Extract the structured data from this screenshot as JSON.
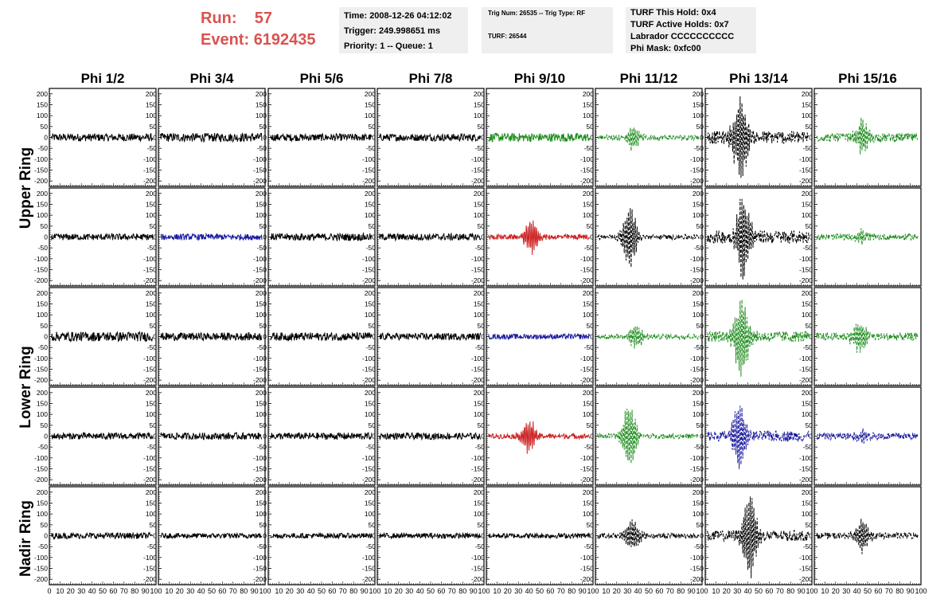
{
  "header": {
    "run_label": "Run:",
    "run_value": "57",
    "event_label": "Event:",
    "event_value": "6192435"
  },
  "info_boxes": {
    "box1": [
      "Time: 2008-12-26 04:12:02",
      "Trigger: 249.998651 ms",
      "Priority: 1 -- Queue: 1"
    ],
    "box2": [
      "Trig Num: 26535 -- Trig Type: RF",
      "TURF: 26544"
    ],
    "box3": [
      "TURF This Hold: 0x4",
      "TURF Active Holds: 0x7",
      "Labrador CCCCCCCCCC",
      "Phi Mask: 0xfc00"
    ]
  },
  "colors": {
    "run_text": "#d9534f",
    "info_bg": "#efefef",
    "trace_black": "#000000",
    "trace_green": "#1e8c1e",
    "trace_red": "#cc1f1f",
    "trace_blue": "#1a1a9e"
  },
  "chart_data": {
    "type": "line",
    "columns": [
      "Phi 1/2",
      "Phi 3/4",
      "Phi 5/6",
      "Phi 7/8",
      "Phi 9/10",
      "Phi 11/12",
      "Phi 13/14",
      "Phi 15/16"
    ],
    "row_labels": [
      "Upper Ring",
      "Lower Ring",
      "Nadir Ring"
    ],
    "ylim": [
      -225,
      225
    ],
    "y_ticks": [
      200,
      150,
      100,
      50,
      0,
      -50,
      -100,
      -150,
      -200
    ],
    "xlim": [
      0,
      100
    ],
    "x_ticks": [
      0,
      10,
      20,
      30,
      40,
      50,
      60,
      70,
      80,
      90,
      100
    ],
    "traces": [
      [
        {
          "color": "black",
          "style": "solid",
          "noise": 18,
          "peak": 0,
          "center": 40
        },
        {
          "color": "black",
          "style": "solid",
          "noise": 20,
          "peak": 0,
          "center": 40
        },
        {
          "color": "black",
          "style": "solid",
          "noise": 17,
          "peak": 0,
          "center": 40
        },
        {
          "color": "black",
          "style": "solid",
          "noise": 17,
          "peak": 0,
          "center": 40
        },
        {
          "color": "green",
          "style": "solid",
          "noise": 20,
          "peak": 0,
          "center": 40
        },
        {
          "color": "green",
          "style": "dashed",
          "noise": 12,
          "peak": 60,
          "center": 35
        },
        {
          "color": "black",
          "style": "dashed",
          "noise": 30,
          "peak": 210,
          "center": 33
        },
        {
          "color": "green",
          "style": "dashed",
          "noise": 20,
          "peak": 90,
          "center": 45
        }
      ],
      [
        {
          "color": "black",
          "style": "solid",
          "noise": 15,
          "peak": 0,
          "center": 40
        },
        {
          "color": "blue",
          "style": "solid",
          "noise": 14,
          "peak": 0,
          "center": 40
        },
        {
          "color": "black",
          "style": "solid",
          "noise": 17,
          "peak": 0,
          "center": 40
        },
        {
          "color": "black",
          "style": "solid",
          "noise": 16,
          "peak": 0,
          "center": 40
        },
        {
          "color": "red",
          "style": "solid",
          "noise": 12,
          "peak": 90,
          "center": 42
        },
        {
          "color": "black",
          "style": "dashed",
          "noise": 12,
          "peak": 160,
          "center": 32
        },
        {
          "color": "black",
          "style": "dashed",
          "noise": 30,
          "peak": 210,
          "center": 36
        },
        {
          "color": "green",
          "style": "dashed",
          "noise": 14,
          "peak": 30,
          "center": 45
        }
      ],
      [
        {
          "color": "black",
          "style": "solid",
          "noise": 22,
          "peak": 0,
          "center": 40
        },
        {
          "color": "black",
          "style": "solid",
          "noise": 18,
          "peak": 0,
          "center": 40
        },
        {
          "color": "black",
          "style": "solid",
          "noise": 19,
          "peak": 0,
          "center": 40
        },
        {
          "color": "black",
          "style": "solid",
          "noise": 16,
          "peak": 0,
          "center": 40
        },
        {
          "color": "blue",
          "style": "solid",
          "noise": 12,
          "peak": 0,
          "center": 40
        },
        {
          "color": "green",
          "style": "dashed",
          "noise": 12,
          "peak": 60,
          "center": 38
        },
        {
          "color": "green",
          "style": "dashed",
          "noise": 25,
          "peak": 210,
          "center": 34
        },
        {
          "color": "green",
          "style": "dashed",
          "noise": 18,
          "peak": 80,
          "center": 42
        }
      ],
      [
        {
          "color": "black",
          "style": "solid",
          "noise": 15,
          "peak": 0,
          "center": 40
        },
        {
          "color": "black",
          "style": "solid",
          "noise": 16,
          "peak": 0,
          "center": 40
        },
        {
          "color": "black",
          "style": "solid",
          "noise": 16,
          "peak": 0,
          "center": 40
        },
        {
          "color": "black",
          "style": "solid",
          "noise": 15,
          "peak": 0,
          "center": 40
        },
        {
          "color": "red",
          "style": "solid",
          "noise": 12,
          "peak": 80,
          "center": 40
        },
        {
          "color": "green",
          "style": "dashed",
          "noise": 12,
          "peak": 160,
          "center": 32
        },
        {
          "color": "blue",
          "style": "dashed",
          "noise": 25,
          "peak": 180,
          "center": 32
        },
        {
          "color": "blue",
          "style": "dashed",
          "noise": 16,
          "peak": 30,
          "center": 45
        }
      ],
      [
        {
          "color": "black",
          "style": "solid",
          "noise": 14,
          "peak": 0,
          "center": 40
        },
        {
          "color": "black",
          "style": "solid",
          "noise": 12,
          "peak": 0,
          "center": 40
        },
        {
          "color": "black",
          "style": "solid",
          "noise": 12,
          "peak": 0,
          "center": 40
        },
        {
          "color": "black",
          "style": "solid",
          "noise": 12,
          "peak": 0,
          "center": 40
        },
        {
          "color": "black",
          "style": "solid",
          "noise": 12,
          "peak": 0,
          "center": 40
        },
        {
          "color": "black",
          "style": "dashed",
          "noise": 12,
          "peak": 80,
          "center": 35
        },
        {
          "color": "black",
          "style": "dashed",
          "noise": 25,
          "peak": 210,
          "center": 42
        },
        {
          "color": "black",
          "style": "dashed",
          "noise": 15,
          "peak": 80,
          "center": 45
        }
      ]
    ]
  }
}
